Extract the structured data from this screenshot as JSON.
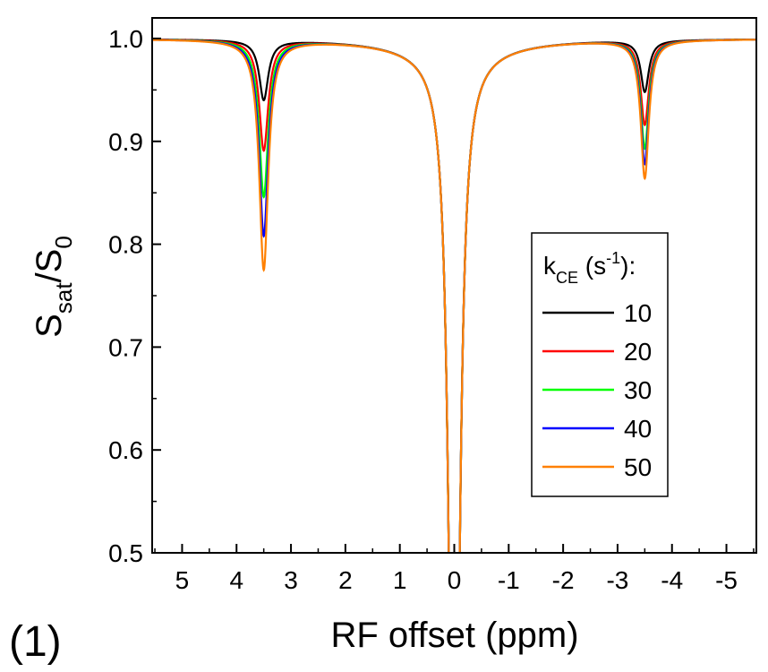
{
  "panel_label": "(1)",
  "chart_data": {
    "type": "line",
    "title": "",
    "xlabel": "RF offset (ppm)",
    "ylabel": {
      "main": "S",
      "sub1": "sat",
      "mid": "/S",
      "sub2": "0"
    },
    "xlim": [
      5.55,
      -5.55
    ],
    "ylim": [
      0.5,
      1.02
    ],
    "x_reversed": true,
    "x_ticks": [
      5,
      4,
      3,
      2,
      1,
      0,
      -1,
      -2,
      -3,
      -4,
      -5
    ],
    "x_tick_labels": [
      "5",
      "4",
      "3",
      "2",
      "1",
      "0",
      "-1",
      "-2",
      "-3",
      "-4",
      "-5"
    ],
    "y_ticks": [
      0.5,
      0.6,
      0.7,
      0.8,
      0.9,
      1.0
    ],
    "y_tick_labels": [
      "0.5",
      "0.6",
      "0.7",
      "0.8",
      "0.9",
      "1.0"
    ],
    "grid": false,
    "legend": {
      "position": "right",
      "title": {
        "main": "k",
        "sub": "CE",
        "rest1": " (s",
        "sup": "-1",
        "rest2": "):"
      }
    },
    "series": [
      {
        "name": "10",
        "color": "#000000",
        "dip_3_5ppm": 0.942,
        "dip_minus_3_5ppm": 0.95
      },
      {
        "name": "20",
        "color": "#ff0000",
        "dip_3_5ppm": 0.893,
        "dip_minus_3_5ppm": 0.918
      },
      {
        "name": "30",
        "color": "#00ff00",
        "dip_3_5ppm": 0.848,
        "dip_minus_3_5ppm": 0.895
      },
      {
        "name": "40",
        "color": "#0000ff",
        "dip_3_5ppm": 0.81,
        "dip_minus_3_5ppm": 0.88
      },
      {
        "name": "50",
        "color": "#ff8000",
        "dip_3_5ppm": 0.777,
        "dip_minus_3_5ppm": 0.866
      }
    ]
  }
}
